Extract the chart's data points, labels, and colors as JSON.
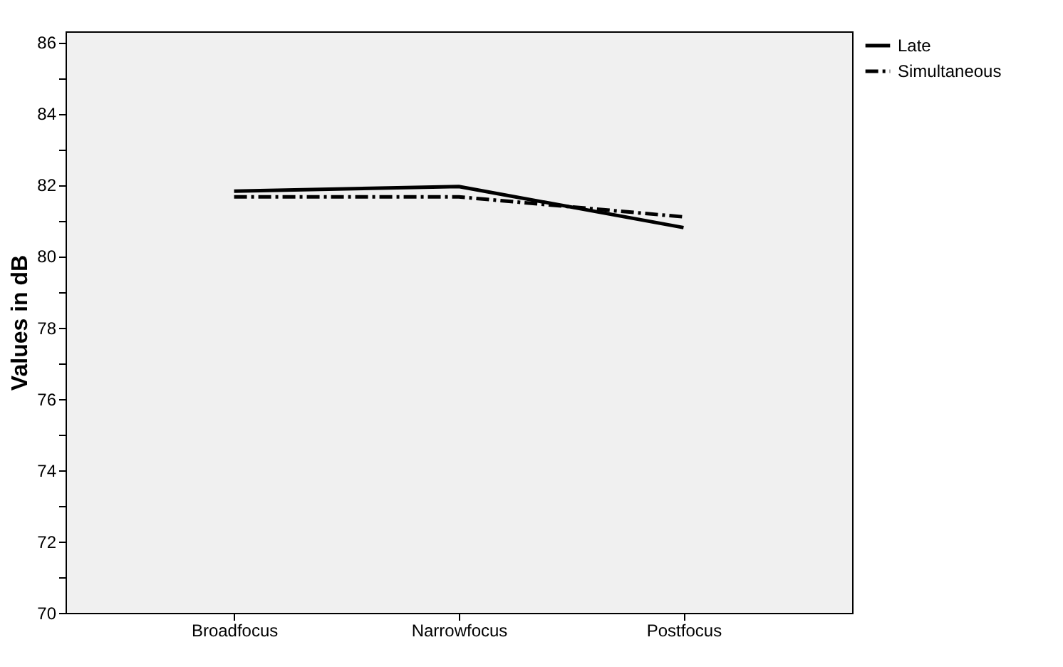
{
  "chart_data": {
    "type": "line",
    "ylabel": "Values in dB",
    "categories": [
      "Broadfocus",
      "Narrowfocus",
      "Postfocus"
    ],
    "series": [
      {
        "name": "Late",
        "color": "#000000",
        "line_style": "solid",
        "values": [
          81.82,
          81.95,
          80.8
        ]
      },
      {
        "name": "Simultaneous",
        "color": "#000000",
        "line_style": "dashed",
        "values": [
          81.66,
          81.66,
          81.1
        ]
      }
    ],
    "ylim": [
      70,
      86.3
    ],
    "yticks": [
      70,
      {
        "value": 71,
        "label": null
      },
      72,
      {
        "value": 73,
        "label": null
      },
      74,
      {
        "value": 75,
        "label": null
      },
      76,
      {
        "value": 77,
        "label": null
      },
      78,
      {
        "value": 79,
        "label": null
      },
      80,
      {
        "value": 81,
        "label": null
      },
      82,
      {
        "value": 83,
        "label": null
      },
      84,
      {
        "value": 85,
        "label": null
      },
      86
    ],
    "grid": false,
    "legend": "top right",
    "marker": "none"
  }
}
